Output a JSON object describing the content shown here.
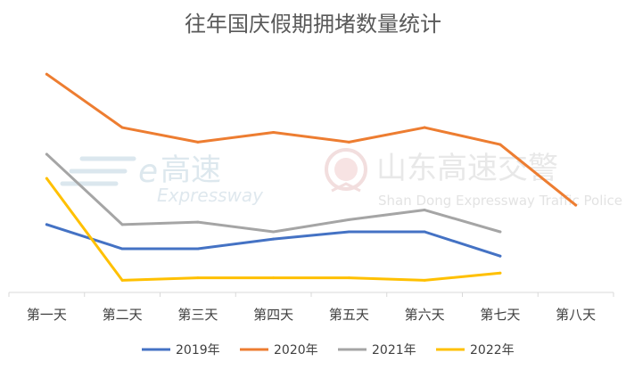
{
  "chart_data": {
    "type": "line",
    "title": "往年国庆假期拥堵数量统计",
    "categories": [
      "第一天",
      "第二天",
      "第三天",
      "第四天",
      "第五天",
      "第六天",
      "第七天",
      "第八天"
    ],
    "ylim": [
      0,
      100
    ],
    "grid": false,
    "legend_position": "bottom",
    "series": [
      {
        "name": "2019年",
        "color": "#4472C4",
        "values": [
          28,
          18,
          18,
          22,
          25,
          25,
          15,
          null
        ]
      },
      {
        "name": "2020年",
        "color": "#ED7D31",
        "values": [
          90,
          68,
          62,
          66,
          62,
          68,
          61,
          36
        ]
      },
      {
        "name": "2021年",
        "color": "#A5A5A5",
        "values": [
          57,
          28,
          29,
          25,
          30,
          34,
          25,
          null
        ]
      },
      {
        "name": "2022年",
        "color": "#FFC000",
        "values": [
          47,
          5,
          6,
          6,
          6,
          5,
          8,
          null
        ]
      }
    ]
  },
  "watermarks": {
    "brand1_mark": "e",
    "brand1_name": "高速",
    "brand1_sub": "Expressway",
    "brand2_name": "山东高速交警",
    "brand2_sub": "Shan Dong Expressway Traffic Police"
  }
}
